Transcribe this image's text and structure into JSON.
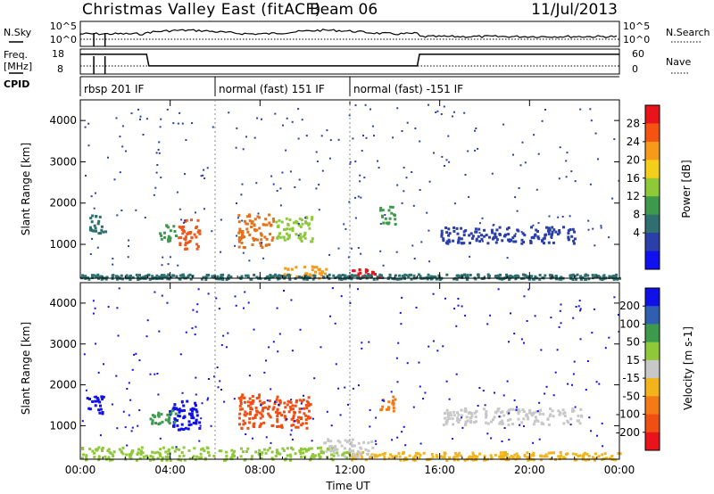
{
  "header": {
    "title": "Christmas Valley East (fitACF)",
    "beam": "Beam 06",
    "date": "11/Jul/2013"
  },
  "top_panel": {
    "left_label_1": "N.Sky",
    "left_label_2": "Freq.",
    "left_label_3": "[MHz]",
    "left_label_4": "CPID",
    "right_label_1": "N.Search",
    "right_label_2": "Nave",
    "sky_axis_ticks": [
      "10^5",
      "10^0"
    ],
    "freq_axis_ticks": [
      "18",
      "8"
    ],
    "nave_axis_ticks": [
      "60",
      "0"
    ],
    "cpid_segments": [
      {
        "start_hour": 0,
        "label": "rbsp 201 IF"
      },
      {
        "start_hour": 6,
        "label": "normal (fast) 151 IF"
      },
      {
        "start_hour": 12,
        "label": "normal (fast) -151 IF"
      }
    ],
    "freq_series": {
      "hours": [
        0,
        2.95,
        3.05,
        15.0,
        15.1,
        24
      ],
      "values": [
        16.5,
        16.5,
        11.5,
        11.5,
        16.5,
        16.5
      ]
    },
    "nave_reference": 22
  },
  "chart_data": [
    {
      "type": "heatmap",
      "name": "power-panel",
      "ylabel": "Slant Range [km]",
      "xlabel": "",
      "xlim": [
        0,
        24
      ],
      "ylim": [
        180,
        4500
      ],
      "y_ticks": [
        "4000",
        "3000",
        "2000",
        "1000"
      ],
      "y_tick_values": [
        4000,
        3000,
        2000,
        1000
      ],
      "colorbar": {
        "label": "Power [dB]",
        "ticks": [
          "28",
          "24",
          "20",
          "16",
          "12",
          "8",
          "4"
        ],
        "colors": [
          "#e8131b",
          "#f45314",
          "#f79a19",
          "#f3cf1b",
          "#8fc93a",
          "#3d9a4c",
          "#2f6f70",
          "#2a3fa8",
          "#1010f0"
        ]
      },
      "regions": [
        {
          "t0": 4.3,
          "t1": 5.3,
          "r0": 900,
          "r1": 1650,
          "color": "#f0571c"
        },
        {
          "t0": 3.5,
          "t1": 4.3,
          "r0": 1100,
          "r1": 1500,
          "color": "#3d9a4c"
        },
        {
          "t0": 7.0,
          "t1": 8.6,
          "r0": 950,
          "r1": 1750,
          "color": "#e2721d"
        },
        {
          "t0": 8.6,
          "t1": 10.3,
          "r0": 1100,
          "r1": 1700,
          "color": "#8fc93a"
        },
        {
          "t0": 0.3,
          "t1": 1.1,
          "r0": 1300,
          "r1": 1750,
          "color": "#2f6f70"
        },
        {
          "t0": 9.0,
          "t1": 11.0,
          "r0": 200,
          "r1": 500,
          "color": "#f79a19"
        },
        {
          "t0": 12.0,
          "t1": 13.4,
          "r0": 200,
          "r1": 420,
          "color": "#e8131b"
        },
        {
          "t0": 0.0,
          "t1": 24.0,
          "r0": 180,
          "r1": 300,
          "color": "#2f6f70"
        },
        {
          "t0": 16.0,
          "t1": 22.0,
          "r0": 1050,
          "r1": 1450,
          "color": "#2a3fa8"
        },
        {
          "t0": 13.3,
          "t1": 14.0,
          "r0": 1500,
          "r1": 1950,
          "color": "#3d9a4c"
        }
      ]
    },
    {
      "type": "heatmap",
      "name": "velocity-panel",
      "ylabel": "Slant Range [km]",
      "xlabel": "Time UT",
      "xlim": [
        0,
        24
      ],
      "ylim": [
        180,
        4500
      ],
      "x_ticks": [
        "00:00",
        "04:00",
        "08:00",
        "12:00",
        "16:00",
        "20:00",
        "00:00"
      ],
      "x_tick_values": [
        0,
        4,
        8,
        12,
        16,
        20,
        24
      ],
      "y_ticks": [
        "4000",
        "3000",
        "2000",
        "1000"
      ],
      "y_tick_values": [
        4000,
        3000,
        2000,
        1000
      ],
      "colorbar": {
        "label": "Velocity [m s-1]",
        "ticks": [
          "200",
          "100",
          "50",
          "15",
          "-15",
          "-50",
          "-100",
          "-200"
        ],
        "colors": [
          "#1010e8",
          "#2f5fb0",
          "#3d9a4c",
          "#8fc93a",
          "#c8c8c8",
          "#f3b41b",
          "#f47a17",
          "#f04f14",
          "#e8131b"
        ]
      },
      "regions": [
        {
          "t0": 3.9,
          "t1": 5.3,
          "r0": 900,
          "r1": 1650,
          "color": "#1010e8"
        },
        {
          "t0": 0.2,
          "t1": 1.0,
          "r0": 1300,
          "r1": 1750,
          "color": "#1010e8"
        },
        {
          "t0": 7.0,
          "t1": 10.2,
          "r0": 950,
          "r1": 1800,
          "color": "#f04f14"
        },
        {
          "t0": 13.3,
          "t1": 14.0,
          "r0": 1350,
          "r1": 1750,
          "color": "#f47a17"
        },
        {
          "t0": 16.0,
          "t1": 22.3,
          "r0": 1050,
          "r1": 1450,
          "color": "#c8c8c8"
        },
        {
          "t0": 0.0,
          "t1": 12.0,
          "r0": 180,
          "r1": 500,
          "color": "#8fc93a"
        },
        {
          "t0": 12.0,
          "t1": 24.0,
          "r0": 180,
          "r1": 380,
          "color": "#f3b41b"
        },
        {
          "t0": 10.8,
          "t1": 13.0,
          "r0": 250,
          "r1": 700,
          "color": "#c8c8c8"
        },
        {
          "t0": 3.0,
          "t1": 4.2,
          "r0": 1050,
          "r1": 1400,
          "color": "#3d9a4c"
        }
      ]
    }
  ]
}
